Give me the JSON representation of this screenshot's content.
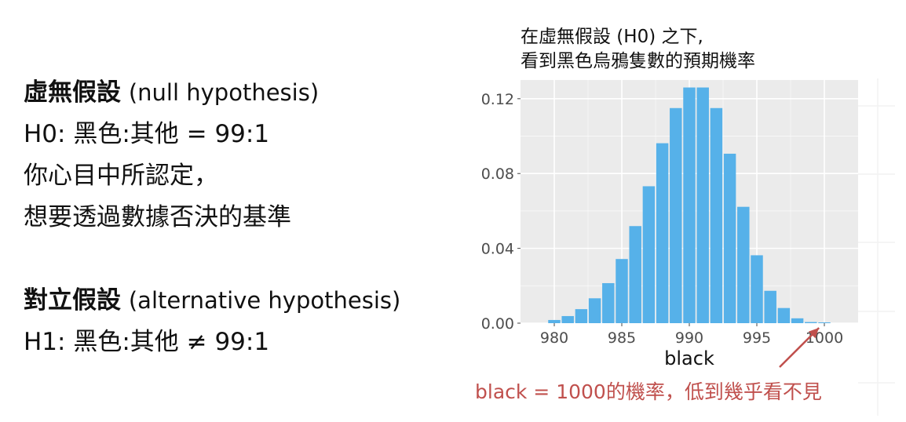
{
  "left_text": {
    "null_title": "虛無假設",
    "null_title_en": "(null hypothesis)",
    "h0": "H0: 黑色:其他 = 99:1",
    "null_desc_1": "你心目中所認定，",
    "null_desc_2": "想要透過數據否決的基準",
    "alt_title": "對立假設",
    "alt_title_en": "(alternative hypothesis)",
    "h1": "H1: 黑色:其他 ≠ 99:1"
  },
  "caption": {
    "line1": "在虛無假設 (H0) 之下,",
    "line2": "看到黑色烏鴉隻數的預期機率"
  },
  "annotation": {
    "text": "black = 1000的機率，低到幾乎看不見",
    "color": "#c0504d"
  },
  "colors": {
    "bar": "#56b1e9",
    "panel": "#ebebeb",
    "grid": "#ffffff"
  },
  "chart_data": {
    "type": "bar",
    "xlabel": "black",
    "ylabel": "",
    "xlim": [
      977.5,
      1002.5
    ],
    "ylim": [
      0,
      0.13
    ],
    "xticks": [
      980,
      985,
      990,
      995,
      1000
    ],
    "xtick_labels": [
      "980",
      "985",
      "990",
      "995",
      "1000"
    ],
    "yticks": [
      0,
      0.04,
      0.08,
      0.12
    ],
    "ytick_labels": [
      "0.00",
      "0.04",
      "0.08",
      "0.12"
    ],
    "x": [
      980,
      981,
      982,
      983,
      984,
      985,
      986,
      987,
      988,
      989,
      990,
      991,
      992,
      993,
      994,
      995,
      996,
      997,
      998,
      999,
      1000
    ],
    "values": [
      0.0017,
      0.0038,
      0.0075,
      0.0133,
      0.0214,
      0.0343,
      0.0519,
      0.0732,
      0.0962,
      0.115,
      0.126,
      0.126,
      0.115,
      0.0906,
      0.0622,
      0.0363,
      0.0173,
      0.0081,
      0.0026,
      0.0006,
      0.0
    ],
    "grid": true,
    "legend": "none"
  }
}
